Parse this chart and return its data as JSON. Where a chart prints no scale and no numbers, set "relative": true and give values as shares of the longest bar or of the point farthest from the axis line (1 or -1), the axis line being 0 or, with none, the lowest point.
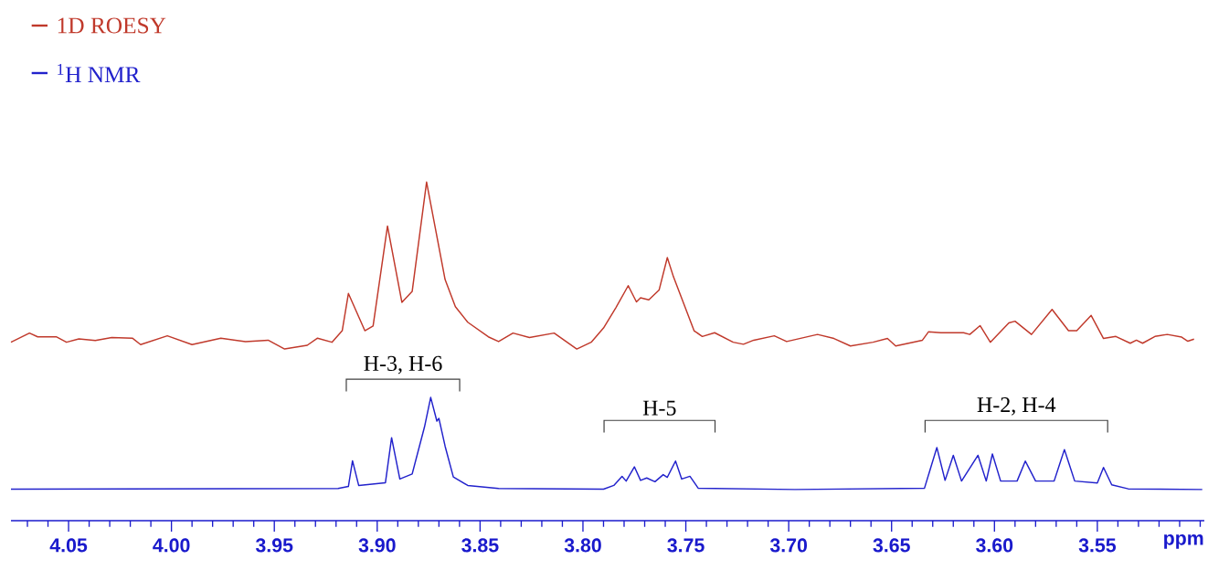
{
  "chart_data": {
    "type": "line",
    "relative": true,
    "xlabel": "ppm",
    "legend": "top left",
    "xlim": [
      4.078,
      3.498
    ],
    "xticks": [
      {
        "value": 4.05,
        "label": "4.05"
      },
      {
        "value": 4.0,
        "label": "4.00"
      },
      {
        "value": 3.95,
        "label": "3.95"
      },
      {
        "value": 3.9,
        "label": "3.90"
      },
      {
        "value": 3.85,
        "label": "3.85"
      },
      {
        "value": 3.8,
        "label": "3.80"
      },
      {
        "value": 3.75,
        "label": "3.75"
      },
      {
        "value": 3.7,
        "label": "3.70"
      },
      {
        "value": 3.65,
        "label": "3.65"
      },
      {
        "value": 3.6,
        "label": "3.60"
      },
      {
        "value": 3.55,
        "label": "3.55"
      },
      {
        "value": 4.07,
        "label": null
      },
      {
        "value": 4.06,
        "label": null
      },
      {
        "value": 4.04,
        "label": null
      },
      {
        "value": 4.03,
        "label": null
      },
      {
        "value": 4.02,
        "label": null
      },
      {
        "value": 4.01,
        "label": null
      },
      {
        "value": 3.99,
        "label": null
      },
      {
        "value": 3.98,
        "label": null
      },
      {
        "value": 3.97,
        "label": null
      },
      {
        "value": 3.96,
        "label": null
      },
      {
        "value": 3.94,
        "label": null
      },
      {
        "value": 3.93,
        "label": null
      },
      {
        "value": 3.92,
        "label": null
      },
      {
        "value": 3.91,
        "label": null
      },
      {
        "value": 3.89,
        "label": null
      },
      {
        "value": 3.88,
        "label": null
      },
      {
        "value": 3.87,
        "label": null
      },
      {
        "value": 3.86,
        "label": null
      },
      {
        "value": 3.84,
        "label": null
      },
      {
        "value": 3.83,
        "label": null
      },
      {
        "value": 3.82,
        "label": null
      },
      {
        "value": 3.81,
        "label": null
      },
      {
        "value": 3.79,
        "label": null
      },
      {
        "value": 3.78,
        "label": null
      },
      {
        "value": 3.77,
        "label": null
      },
      {
        "value": 3.76,
        "label": null
      },
      {
        "value": 3.74,
        "label": null
      },
      {
        "value": 3.73,
        "label": null
      },
      {
        "value": 3.72,
        "label": null
      },
      {
        "value": 3.71,
        "label": null
      },
      {
        "value": 3.69,
        "label": null
      },
      {
        "value": 3.68,
        "label": null
      },
      {
        "value": 3.67,
        "label": null
      },
      {
        "value": 3.66,
        "label": null
      },
      {
        "value": 3.64,
        "label": null
      },
      {
        "value": 3.63,
        "label": null
      },
      {
        "value": 3.62,
        "label": null
      },
      {
        "value": 3.61,
        "label": null
      },
      {
        "value": 3.59,
        "label": null
      },
      {
        "value": 3.58,
        "label": null
      },
      {
        "value": 3.57,
        "label": null
      },
      {
        "value": 3.56,
        "label": null
      },
      {
        "value": 3.54,
        "label": null
      },
      {
        "value": 3.53,
        "label": null
      },
      {
        "value": 3.52,
        "label": null
      },
      {
        "value": 3.51,
        "label": null
      },
      {
        "value": 3.5,
        "label": null
      }
    ],
    "series": [
      {
        "name": "1D ROESY",
        "color": "#c0392b",
        "x": [
          4.078,
          4.069,
          4.065,
          4.056,
          4.051,
          4.045,
          4.037,
          4.029,
          4.019,
          4.015,
          4.002,
          3.99,
          3.976,
          3.964,
          3.953,
          3.945,
          3.934,
          3.929,
          3.922,
          3.917,
          3.914,
          3.906,
          3.902,
          3.895,
          3.888,
          3.883,
          3.876,
          3.867,
          3.862,
          3.856,
          3.846,
          3.841,
          3.834,
          3.826,
          3.814,
          3.803,
          3.796,
          3.79,
          3.784,
          3.778,
          3.774,
          3.772,
          3.768,
          3.763,
          3.759,
          3.756,
          3.746,
          3.742,
          3.736,
          3.727,
          3.722,
          3.717,
          3.707,
          3.701,
          3.686,
          3.678,
          3.67,
          3.659,
          3.652,
          3.648,
          3.635,
          3.632,
          3.626,
          3.615,
          3.612,
          3.607,
          3.602,
          3.593,
          3.59,
          3.582,
          3.572,
          3.564,
          3.56,
          3.553,
          3.547,
          3.541,
          3.534,
          3.531,
          3.528,
          3.522,
          3.516,
          3.509,
          3.506,
          3.503
        ],
        "values": [
          0.527,
          0.554,
          0.543,
          0.543,
          0.527,
          0.537,
          0.532,
          0.541,
          0.539,
          0.52,
          0.546,
          0.52,
          0.539,
          0.529,
          0.533,
          0.507,
          0.518,
          0.539,
          0.527,
          0.561,
          0.671,
          0.561,
          0.575,
          0.87,
          0.645,
          0.677,
          1.0,
          0.712,
          0.632,
          0.586,
          0.543,
          0.529,
          0.554,
          0.541,
          0.554,
          0.507,
          0.527,
          0.569,
          0.629,
          0.694,
          0.646,
          0.658,
          0.652,
          0.681,
          0.777,
          0.72,
          0.561,
          0.544,
          0.555,
          0.527,
          0.521,
          0.533,
          0.546,
          0.529,
          0.55,
          0.538,
          0.516,
          0.527,
          0.538,
          0.516,
          0.533,
          0.558,
          0.555,
          0.555,
          0.55,
          0.576,
          0.527,
          0.584,
          0.589,
          0.55,
          0.624,
          0.561,
          0.561,
          0.606,
          0.538,
          0.544,
          0.524,
          0.533,
          0.524,
          0.544,
          0.55,
          0.542,
          0.53,
          0.536
        ]
      },
      {
        "name": "$^{1}$H NMR",
        "color": "#2222cc",
        "x": [
          4.078,
          3.919,
          3.914,
          3.912,
          3.909,
          3.896,
          3.893,
          3.889,
          3.883,
          3.877,
          3.874,
          3.871,
          3.87,
          3.867,
          3.863,
          3.856,
          3.841,
          3.79,
          3.785,
          3.781,
          3.779,
          3.775,
          3.772,
          3.769,
          3.765,
          3.761,
          3.759,
          3.755,
          3.752,
          3.748,
          3.744,
          3.697,
          3.634,
          3.628,
          3.624,
          3.62,
          3.616,
          3.608,
          3.604,
          3.601,
          3.597,
          3.589,
          3.585,
          3.58,
          3.571,
          3.566,
          3.561,
          3.55,
          3.547,
          3.543,
          3.535,
          3.499
        ],
        "values": [
          0.093,
          0.095,
          0.101,
          0.177,
          0.104,
          0.112,
          0.245,
          0.123,
          0.138,
          0.277,
          0.364,
          0.294,
          0.302,
          0.22,
          0.129,
          0.104,
          0.095,
          0.093,
          0.104,
          0.131,
          0.117,
          0.159,
          0.119,
          0.126,
          0.115,
          0.136,
          0.128,
          0.176,
          0.123,
          0.131,
          0.096,
          0.092,
          0.096,
          0.216,
          0.119,
          0.193,
          0.117,
          0.193,
          0.117,
          0.197,
          0.117,
          0.117,
          0.176,
          0.117,
          0.117,
          0.21,
          0.117,
          0.111,
          0.157,
          0.106,
          0.094,
          0.092
        ]
      }
    ],
    "annotations": [
      "H-3, H-6",
      "H-5",
      "H-2, H-4"
    ]
  }
}
